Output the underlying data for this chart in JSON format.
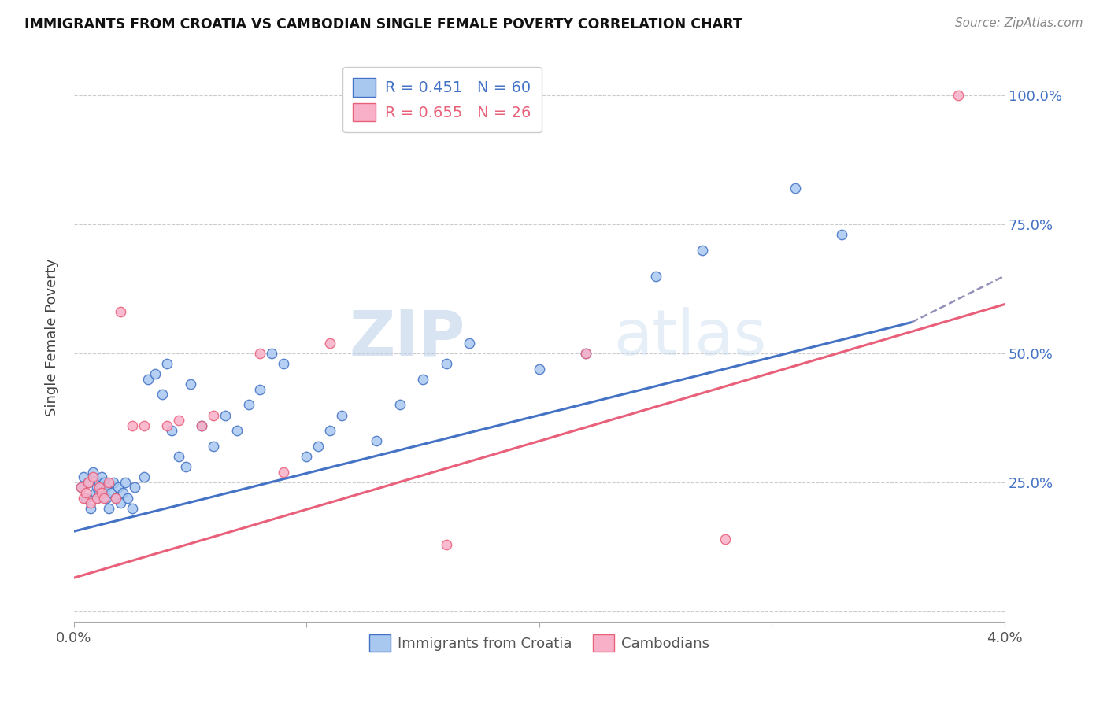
{
  "title": "IMMIGRANTS FROM CROATIA VS CAMBODIAN SINGLE FEMALE POVERTY CORRELATION CHART",
  "source": "Source: ZipAtlas.com",
  "ylabel": "Single Female Poverty",
  "ytick_positions": [
    0.0,
    0.25,
    0.5,
    0.75,
    1.0
  ],
  "xlim": [
    0.0,
    0.04
  ],
  "ylim": [
    -0.02,
    1.08
  ],
  "legend_r1": "R = 0.451",
  "legend_n1": "N = 60",
  "legend_r2": "R = 0.655",
  "legend_n2": "N = 26",
  "color_blue": "#A8C8F0",
  "color_pink": "#F8B0C8",
  "color_blue_line": "#4472C4",
  "color_pink_line": "#E8607A",
  "color_dash_line": "#9090B8",
  "color_ytick_label": "#4472C4",
  "watermark_color": "#C8D8F0",
  "blue_scatter_x": [
    0.0003,
    0.0004,
    0.0005,
    0.0006,
    0.0007,
    0.0008,
    0.0009,
    0.001,
    0.001,
    0.0011,
    0.0011,
    0.0012,
    0.0012,
    0.0013,
    0.0013,
    0.0014,
    0.0014,
    0.0015,
    0.0016,
    0.0017,
    0.0018,
    0.0019,
    0.002,
    0.0021,
    0.0022,
    0.0023,
    0.0025,
    0.0026,
    0.003,
    0.0032,
    0.0035,
    0.0038,
    0.004,
    0.0042,
    0.0045,
    0.0048,
    0.005,
    0.0055,
    0.006,
    0.0065,
    0.007,
    0.0075,
    0.008,
    0.0085,
    0.009,
    0.01,
    0.0105,
    0.011,
    0.0115,
    0.013,
    0.014,
    0.015,
    0.016,
    0.017,
    0.02,
    0.022,
    0.025,
    0.027,
    0.031,
    0.033
  ],
  "blue_scatter_y": [
    0.24,
    0.26,
    0.22,
    0.25,
    0.2,
    0.27,
    0.23,
    0.24,
    0.22,
    0.25,
    0.23,
    0.24,
    0.26,
    0.23,
    0.25,
    0.22,
    0.24,
    0.2,
    0.23,
    0.25,
    0.22,
    0.24,
    0.21,
    0.23,
    0.25,
    0.22,
    0.2,
    0.24,
    0.26,
    0.45,
    0.46,
    0.42,
    0.48,
    0.35,
    0.3,
    0.28,
    0.44,
    0.36,
    0.32,
    0.38,
    0.35,
    0.4,
    0.43,
    0.5,
    0.48,
    0.3,
    0.32,
    0.35,
    0.38,
    0.33,
    0.4,
    0.45,
    0.48,
    0.52,
    0.47,
    0.5,
    0.65,
    0.7,
    0.82,
    0.73
  ],
  "pink_scatter_x": [
    0.0003,
    0.0004,
    0.0005,
    0.0006,
    0.0007,
    0.0008,
    0.001,
    0.0011,
    0.0012,
    0.0013,
    0.0015,
    0.0018,
    0.002,
    0.0025,
    0.003,
    0.004,
    0.0045,
    0.0055,
    0.006,
    0.008,
    0.009,
    0.011,
    0.016,
    0.022,
    0.028,
    0.038
  ],
  "pink_scatter_y": [
    0.24,
    0.22,
    0.23,
    0.25,
    0.21,
    0.26,
    0.22,
    0.24,
    0.23,
    0.22,
    0.25,
    0.22,
    0.58,
    0.36,
    0.36,
    0.36,
    0.37,
    0.36,
    0.38,
    0.5,
    0.27,
    0.52,
    0.13,
    0.5,
    0.14,
    1.0
  ],
  "blue_line_x": [
    0.0,
    0.036
  ],
  "blue_line_y": [
    0.155,
    0.56
  ],
  "dash_line_x": [
    0.036,
    0.04
  ],
  "dash_line_y": [
    0.56,
    0.65
  ],
  "pink_line_x": [
    0.0,
    0.04
  ],
  "pink_line_y": [
    0.065,
    0.595
  ],
  "scatter_size": 80
}
